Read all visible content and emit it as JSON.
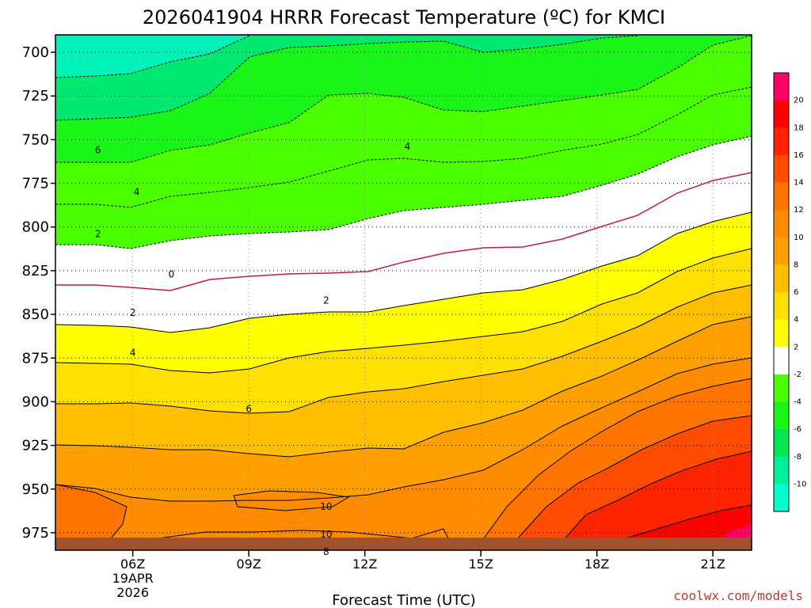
{
  "chart_data": {
    "type": "time-height contour",
    "title": "2026041904 HRRR Forecast Temperature (ºC) for KMCI",
    "xlabel": "Forecast Time (UTC)",
    "x_ticks": [
      {
        "hour": 6,
        "label": "06Z",
        "label2": "19APR",
        "label3": "2026"
      },
      {
        "hour": 9,
        "label": "09Z"
      },
      {
        "hour": 12,
        "label": "12Z"
      },
      {
        "hour": 15,
        "label": "15Z"
      },
      {
        "hour": 18,
        "label": "18Z"
      },
      {
        "hour": 21,
        "label": "21Z"
      }
    ],
    "xlim": [
      4,
      22
    ],
    "ylim": [
      690,
      985
    ],
    "y_ticks": [
      {
        "p": 700,
        "label": "700"
      },
      {
        "p": 725,
        "label": "725"
      },
      {
        "p": 750,
        "label": "750"
      },
      {
        "p": 775,
        "label": "775"
      },
      {
        "p": 800,
        "label": "800"
      },
      {
        "p": 825,
        "label": "825"
      },
      {
        "p": 850,
        "label": "850"
      },
      {
        "p": 875,
        "label": "875"
      },
      {
        "p": 900,
        "label": "900"
      },
      {
        "p": 925,
        "label": "925"
      },
      {
        "p": 950,
        "label": "950"
      },
      {
        "p": 975,
        "label": "975"
      }
    ],
    "colorbar": [
      {
        "level": 20,
        "label": "20",
        "color": "#ff0066"
      },
      {
        "level": 18,
        "label": "18",
        "color": "#ff0000"
      },
      {
        "level": 16,
        "label": "16",
        "color": "#ff2400"
      },
      {
        "level": 14,
        "label": "14",
        "color": "#ff4c00"
      },
      {
        "level": 12,
        "label": "12",
        "color": "#ff7300"
      },
      {
        "level": 10,
        "label": "10",
        "color": "#ff8c00"
      },
      {
        "level": 8,
        "label": "8",
        "color": "#ffa000"
      },
      {
        "level": 6,
        "label": "6",
        "color": "#ffbe00"
      },
      {
        "level": 4,
        "label": "4",
        "color": "#ffe000"
      },
      {
        "level": 2,
        "label": "2",
        "color": "#ffff00"
      },
      {
        "level": -2,
        "label": "-2",
        "color": "#ffffff"
      },
      {
        "level": -4,
        "label": "-4",
        "color": "#4cff00"
      },
      {
        "level": -6,
        "label": "-6",
        "color": "#19f519"
      },
      {
        "level": -8,
        "label": "-8",
        "color": "#00e655"
      },
      {
        "level": -10,
        "label": "-10",
        "color": "#00f09a"
      },
      {
        "level": -99,
        "label": "",
        "color": "#00ffcc"
      }
    ],
    "contour_labels": [
      {
        "text": "6",
        "h": 5.1,
        "p": 756
      },
      {
        "text": "4",
        "h": 6.1,
        "p": 780
      },
      {
        "text": "4",
        "h": 13.1,
        "p": 754
      },
      {
        "text": "2",
        "h": 5.1,
        "p": 804
      },
      {
        "text": "0",
        "h": 7.0,
        "p": 827
      },
      {
        "text": "2",
        "h": 6.0,
        "p": 849
      },
      {
        "text": "2",
        "h": 11.0,
        "p": 842
      },
      {
        "text": "4",
        "h": 6.0,
        "p": 872
      },
      {
        "text": "6",
        "h": 9.0,
        "p": 904
      },
      {
        "text": "10",
        "h": 11.0,
        "p": 960
      },
      {
        "text": "10",
        "h": 11.0,
        "p": 976
      },
      {
        "text": "8",
        "h": 11.0,
        "p": 986
      }
    ],
    "credit": "coolwx.com/models"
  }
}
